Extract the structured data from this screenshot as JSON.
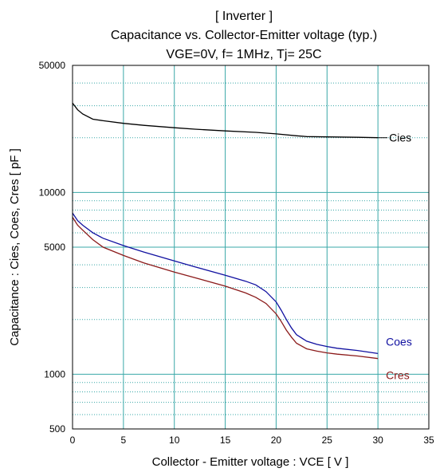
{
  "chart_data": {
    "type": "line",
    "title": "[ Inverter ]",
    "subtitle": "Capacitance  vs.  Collector-Emitter voltage  (typ.)",
    "conditions": "VGE=0V,  f= 1MHz,  Tj= 25C",
    "xlabel": "Collector - Emitter voltage  :  VCE  [ V ]",
    "ylabel": "Capacitance  :  Cies, Coes, Cres  [ pF ]",
    "xlim": [
      0,
      35
    ],
    "ylim": [
      500,
      50000
    ],
    "yscale": "log",
    "grid": true,
    "x_ticks": [
      "0",
      "5",
      "10",
      "15",
      "20",
      "25",
      "30",
      "35"
    ],
    "y_tick_labels": [
      "500",
      "1000",
      "5000",
      "10000",
      "50000"
    ],
    "colors": {
      "grid": "#3aa8a8",
      "Cies": "#000000",
      "Coes": "#1010a0",
      "Cres": "#8b1a1a"
    },
    "series": [
      {
        "name": "Cies",
        "x": [
          0,
          0.5,
          1,
          2,
          3,
          5,
          7,
          10,
          12,
          15,
          18,
          20,
          22,
          23,
          25,
          28,
          30
        ],
        "values": [
          31000,
          28500,
          27000,
          25300,
          24800,
          24000,
          23400,
          22700,
          22300,
          21800,
          21400,
          21000,
          20500,
          20300,
          20200,
          20100,
          20000
        ]
      },
      {
        "name": "Coes",
        "x": [
          0,
          0.5,
          1,
          2,
          3,
          5,
          7,
          10,
          12,
          15,
          17,
          18,
          19,
          20,
          20.5,
          21,
          21.5,
          22,
          23,
          24,
          25,
          26,
          28,
          30
        ],
        "values": [
          7700,
          7000,
          6600,
          6000,
          5600,
          5100,
          4700,
          4200,
          3900,
          3500,
          3250,
          3100,
          2850,
          2500,
          2250,
          2000,
          1800,
          1650,
          1520,
          1460,
          1420,
          1390,
          1350,
          1300
        ]
      },
      {
        "name": "Cres",
        "x": [
          0,
          0.5,
          1,
          2,
          3,
          5,
          7,
          10,
          12,
          15,
          17,
          18,
          19,
          20,
          20.5,
          21,
          21.5,
          22,
          23,
          24,
          25,
          26,
          28,
          30
        ],
        "values": [
          7300,
          6600,
          6200,
          5500,
          5000,
          4500,
          4100,
          3650,
          3400,
          3050,
          2800,
          2650,
          2450,
          2150,
          1950,
          1750,
          1600,
          1480,
          1380,
          1340,
          1310,
          1290,
          1260,
          1220
        ]
      }
    ]
  }
}
